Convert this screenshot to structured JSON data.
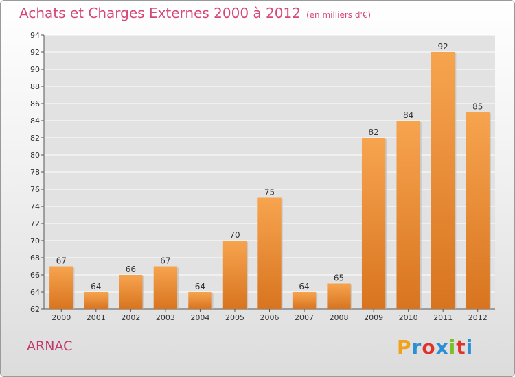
{
  "chart_data": {
    "type": "bar",
    "title": "Achats et Charges Externes 2000 à 2012",
    "subtitle": "(en milliers d'€)",
    "categories": [
      "2000",
      "2001",
      "2002",
      "2003",
      "2004",
      "2005",
      "2006",
      "2007",
      "2008",
      "2009",
      "2010",
      "2011",
      "2012"
    ],
    "values": [
      67,
      64,
      66,
      67,
      64,
      70,
      75,
      64,
      65,
      82,
      84,
      92,
      85
    ],
    "ylim": [
      62,
      94
    ],
    "yticks": [
      62,
      64,
      66,
      68,
      70,
      72,
      74,
      76,
      78,
      80,
      82,
      84,
      86,
      88,
      90,
      92,
      94
    ],
    "grid": true,
    "bar_color_top": "#f7a44f",
    "bar_color_bottom": "#d8741f"
  },
  "footer": {
    "location": "ARNAC",
    "logo_letters": [
      "P",
      "r",
      "o",
      "x",
      "i",
      "t",
      "i"
    ],
    "logo_colors": [
      "#f0a319",
      "#2b8fd6",
      "#e0312c",
      "#2b8fd6",
      "#7bbf2a",
      "#e0312c",
      "#2b8fd6"
    ]
  }
}
